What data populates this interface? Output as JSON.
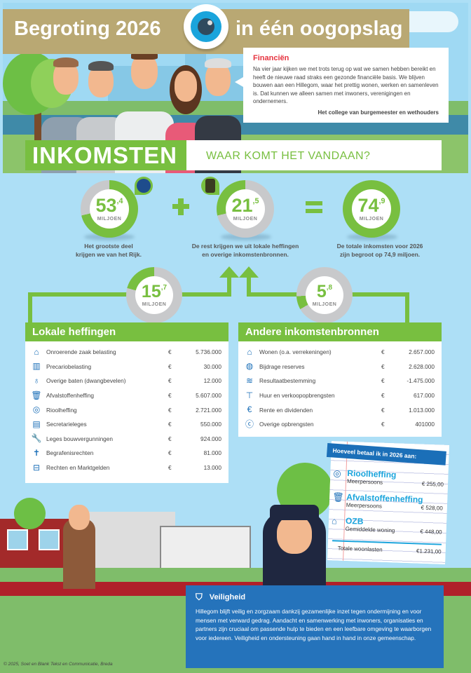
{
  "header": {
    "title_left": "Begroting 2026",
    "title_right": "in één oogopslag",
    "eye_icon": "eye-icon"
  },
  "intro": {
    "heading": "Financiën",
    "body": "Na vier jaar kijken we met trots terug op wat we samen hebben bereikt en heeft de nieuwe raad straks een gezonde financiële basis. We blijven bouwen aan een Hillegom, waar het prettig wonen, werken en samenleven is. Dat kunnen we alleen samen met inwoners, verenigingen en ondernemers.",
    "signature": "Het college van burgemeester en wethouders"
  },
  "section": {
    "title": "INKOMSTEN",
    "subtitle": "WAAR KOMT HET VANDAAN?"
  },
  "totals": [
    {
      "whole": "53",
      "decimal": ",4",
      "unit": "MILJOEN",
      "value": 53.4,
      "caption1": "Het grootste deel",
      "caption2": "krijgen we van het Rijk."
    },
    {
      "whole": "21",
      "decimal": ",5",
      "unit": "MILJOEN",
      "value": 21.5,
      "caption1": "De rest krijgen we uit lokale heffingen",
      "caption2": "en overige inkomstenbronnen."
    },
    {
      "whole": "74",
      "decimal": ",9",
      "unit": "MILJOEN",
      "value": 74.9,
      "caption1": "De totale inkomsten voor 2026",
      "caption2": "zijn begroot op 74,9 miljoen."
    }
  ],
  "sub_totals": [
    {
      "whole": "15",
      "decimal": ",7",
      "unit": "MILJOEN",
      "value": 15.7
    },
    {
      "whole": "5",
      "decimal": ",8",
      "unit": "MILJOEN",
      "value": 5.8
    }
  ],
  "colors": {
    "green": "#78bf40",
    "grey": "#c8c9cb",
    "blue": "#1b6fb8",
    "tan": "#b9a873",
    "red": "#e6323e"
  },
  "lokale_heffingen": {
    "title": "Lokale heffingen",
    "rows": [
      {
        "icon": "house-icon",
        "label": "Onroerende zaak belasting",
        "currency": "€",
        "amount": "5.736.000"
      },
      {
        "icon": "market-stall-icon",
        "label": "Precariobelasting",
        "currency": "€",
        "amount": "30.000"
      },
      {
        "icon": "medal-icon",
        "label": "Overige baten (dwangbevelen)",
        "currency": "€",
        "amount": "12.000"
      },
      {
        "icon": "trash-bin-icon",
        "label": "Afvalstoffenheffing",
        "currency": "€",
        "amount": "5.607.000"
      },
      {
        "icon": "sewer-pipe-icon",
        "label": "Rioolheffing",
        "currency": "€",
        "amount": "2.721.000"
      },
      {
        "icon": "document-icon",
        "label": "Secretarieleges",
        "currency": "€",
        "amount": "550.000"
      },
      {
        "icon": "wrench-icon",
        "label": "Leges bouwvergunningen",
        "currency": "€",
        "amount": "924.000"
      },
      {
        "icon": "cross-icon",
        "label": "Begrafenisrechten",
        "currency": "€",
        "amount": "81.000"
      },
      {
        "icon": "basket-icon",
        "label": "Rechten en Marktgelden",
        "currency": "€",
        "amount": "13.000"
      }
    ]
  },
  "andere_bronnen": {
    "title": "Andere inkomstenbronnen",
    "rows": [
      {
        "icon": "home-icon",
        "label": "Wonen (o.a. verrekeningen)",
        "currency": "€",
        "amount": "2.657.000"
      },
      {
        "icon": "piggy-bank-icon",
        "label": "Bijdrage reserves",
        "currency": "€",
        "amount": "2.628.000"
      },
      {
        "icon": "coins-icon",
        "label": "Resultaatbestemming",
        "currency": "€",
        "amount": "-1.475.000"
      },
      {
        "icon": "sign-icon",
        "label": "Huur en verkoopopbrengsten",
        "currency": "€",
        "amount": "617.000"
      },
      {
        "icon": "banknote-icon",
        "label": "Rente en dividenden",
        "currency": "€",
        "amount": "1.013.000"
      },
      {
        "icon": "euro-coin-icon",
        "label": "Overige opbrengsten",
        "currency": "€",
        "amount": "401000"
      }
    ]
  },
  "note": {
    "title": "Hoeveel betaal ik in 2026 aan:",
    "items": [
      {
        "icon": "sewer-pipe-icon",
        "heading": "Rioolheffing",
        "label": "Meerpersoons",
        "amount": "€ 255,00"
      },
      {
        "icon": "trash-bin-icon",
        "heading": "Afvalstoffenheffing",
        "label": "Meerpersoons",
        "amount": "€ 528,00"
      },
      {
        "icon": "house-icon",
        "heading": "OZB",
        "label": "Gemiddelde woning",
        "amount": "€ 448,00"
      }
    ],
    "total_label": "Totale woonlasten",
    "total_amount": "€1.231,00"
  },
  "veiligheid": {
    "icon": "shield-star-icon",
    "title": "Veiligheid",
    "body": "Hillegom blijft veilig en zorgzaam dankzij gezamenlijke inzet tegen ondermijning en voor mensen met verward gedrag. Aandacht en samenwerking met inwoners, organisaties en partners zijn cruciaal om passende hulp te bieden en een leefbare omgeving te waarborgen voor iedereen. Veiligheid en ondersteuning gaan hand in hand in onze gemeenschap."
  },
  "footer": {
    "copyright": "© 2025, Soet en Blank Tekst en Communicatie, Breda"
  }
}
